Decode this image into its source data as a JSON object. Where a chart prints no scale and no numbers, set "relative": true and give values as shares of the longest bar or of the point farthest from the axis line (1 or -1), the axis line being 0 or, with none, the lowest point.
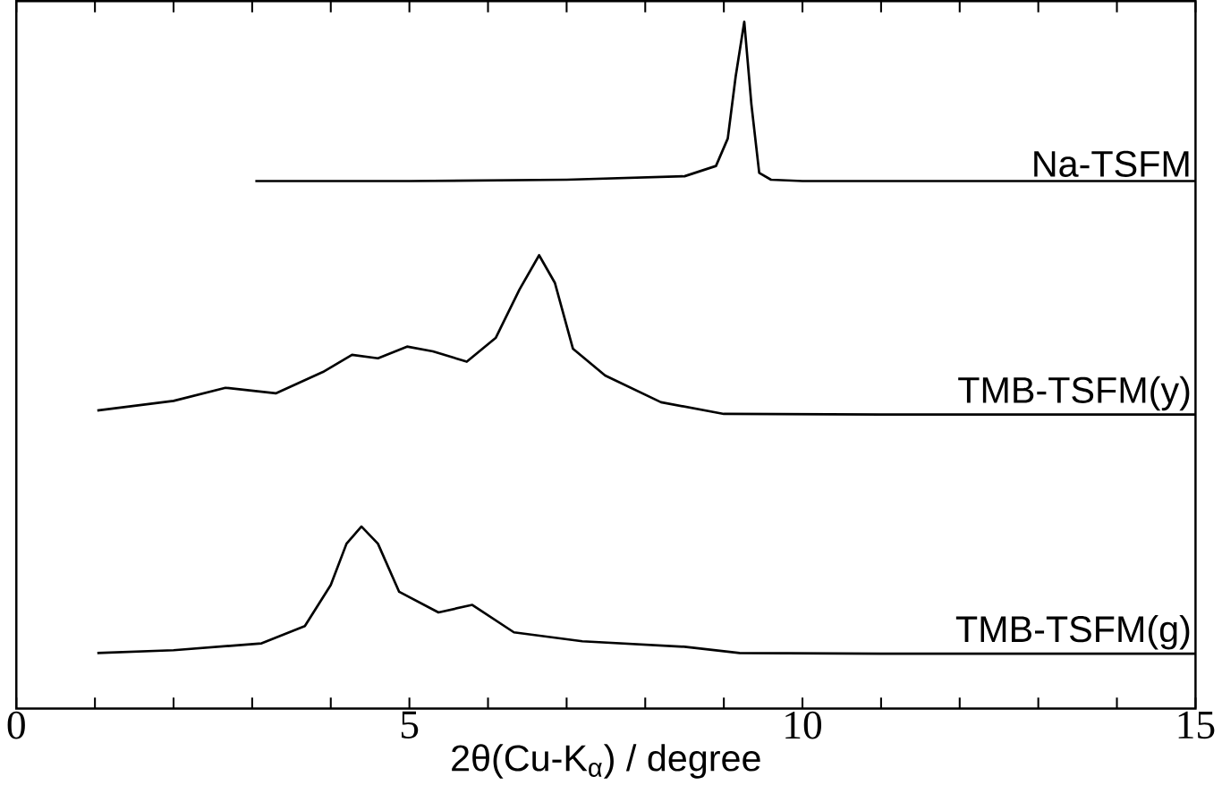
{
  "chart_data": {
    "type": "line",
    "xlabel": "2θ(Cu-K$_{α}$) / degree",
    "relative": true,
    "xlim": [
      0,
      15
    ],
    "xticks": [
      0,
      {
        "value": 1,
        "label": null
      },
      {
        "value": 2,
        "label": null
      },
      {
        "value": 3,
        "label": null
      },
      {
        "value": 4,
        "label": null
      },
      5,
      {
        "value": 6,
        "label": null
      },
      {
        "value": 7,
        "label": null
      },
      {
        "value": 8,
        "label": null
      },
      {
        "value": 9,
        "label": null
      },
      10,
      {
        "value": 11,
        "label": null
      },
      {
        "value": 12,
        "label": null
      },
      {
        "value": 13,
        "label": null
      },
      {
        "value": 14,
        "label": null
      },
      15
    ],
    "marker": "none",
    "line_style": "solid",
    "series": [
      {
        "name": "Na-TSFM",
        "color": "#000000",
        "x": [
          3.04,
          5,
          7,
          8.5,
          8.9,
          9.05,
          9.15,
          9.26,
          9.35,
          9.45,
          9.6,
          10,
          12,
          15
        ],
        "values": [
          0.768,
          0.768,
          0.77,
          0.775,
          0.79,
          0.83,
          0.92,
          1.0,
          0.88,
          0.78,
          0.77,
          0.768,
          0.768,
          0.768
        ]
      },
      {
        "name": "TMB-TSFM(y)",
        "color": "#000000",
        "x": [
          1.03,
          2,
          2.66,
          3.3,
          3.9,
          4.27,
          4.6,
          4.97,
          5.3,
          5.73,
          6.1,
          6.4,
          6.65,
          6.85,
          7.08,
          7.49,
          8.2,
          9,
          11,
          15
        ],
        "values": [
          0.434,
          0.448,
          0.467,
          0.459,
          0.49,
          0.515,
          0.51,
          0.527,
          0.52,
          0.505,
          0.54,
          0.61,
          0.66,
          0.62,
          0.524,
          0.485,
          0.446,
          0.429,
          0.428,
          0.428
        ]
      },
      {
        "name": "TMB-TSFM(g)",
        "color": "#000000",
        "x": [
          1.03,
          2,
          3.12,
          3.67,
          4.0,
          4.2,
          4.39,
          4.6,
          4.87,
          5.37,
          5.8,
          6.33,
          7.2,
          8.5,
          9.2,
          11,
          15
        ],
        "values": [
          0.081,
          0.085,
          0.095,
          0.12,
          0.18,
          0.24,
          0.265,
          0.24,
          0.17,
          0.14,
          0.151,
          0.111,
          0.098,
          0.09,
          0.081,
          0.08,
          0.08
        ]
      }
    ]
  }
}
